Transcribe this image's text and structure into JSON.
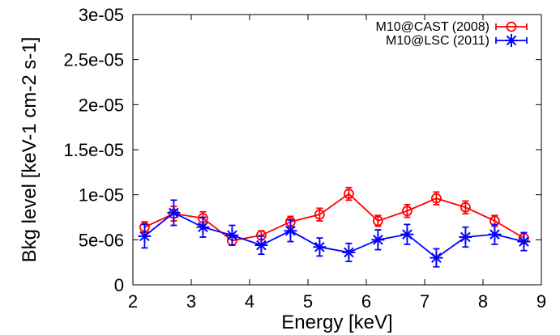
{
  "chart_data": {
    "type": "line",
    "title": "",
    "xlabel": "Energy [keV]",
    "ylabel": "Bkg level [keV-1 cm-2 s-1]",
    "xlim": [
      2,
      9
    ],
    "ylim": [
      0,
      3e-05
    ],
    "x_ticks": [
      2,
      3,
      4,
      5,
      6,
      7,
      8,
      9
    ],
    "x_tick_labels": [
      "2",
      "3",
      "4",
      "5",
      "6",
      "7",
      "8",
      "9"
    ],
    "y_ticks": [
      0,
      5e-06,
      1e-05,
      1.5e-05,
      2e-05,
      2.5e-05,
      3e-05
    ],
    "y_tick_labels": [
      "0",
      "5e-06",
      "1e-05",
      "1.5e-05",
      "2e-05",
      "2.5e-05",
      "3e-05"
    ],
    "grid": false,
    "legend_position": "top-right",
    "series": [
      {
        "name": "M10@CAST (2008)",
        "color": "#ff0000",
        "marker": "circle",
        "x": [
          2.2,
          2.7,
          3.2,
          3.7,
          4.2,
          4.7,
          5.2,
          5.7,
          6.2,
          6.7,
          7.2,
          7.7,
          8.2,
          8.7
        ],
        "y": [
          6.4e-06,
          7.9e-06,
          7.4e-06,
          4.9e-06,
          5.5e-06,
          7e-06,
          7.8e-06,
          1.01e-05,
          7.1e-06,
          8.2e-06,
          9.6e-06,
          8.6e-06,
          7.1e-06,
          5.2e-06
        ],
        "yerr": [
          6e-07,
          8e-07,
          7e-07,
          5e-07,
          5e-07,
          6e-07,
          7e-07,
          7e-07,
          6e-07,
          7e-07,
          7e-07,
          7e-07,
          6e-07,
          6e-07
        ]
      },
      {
        "name": "M10@LSC (2011)",
        "color": "#0000ff",
        "marker": "star",
        "x": [
          2.2,
          2.7,
          3.2,
          3.7,
          4.2,
          4.7,
          5.2,
          5.7,
          6.2,
          6.7,
          7.2,
          7.7,
          8.2,
          8.7
        ],
        "y": [
          5.4e-06,
          8e-06,
          6.4e-06,
          5.5e-06,
          4.4e-06,
          6e-06,
          4.2e-06,
          3.6e-06,
          5e-06,
          5.6e-06,
          3e-06,
          5.3e-06,
          5.6e-06,
          4.8e-06
        ],
        "yerr": [
          1.3e-06,
          1.4e-06,
          1.1e-06,
          1.1e-06,
          1e-06,
          1.2e-06,
          1e-06,
          1e-06,
          1.1e-06,
          1.1e-06,
          1e-06,
          1.1e-06,
          1.1e-06,
          1e-06
        ]
      }
    ]
  }
}
